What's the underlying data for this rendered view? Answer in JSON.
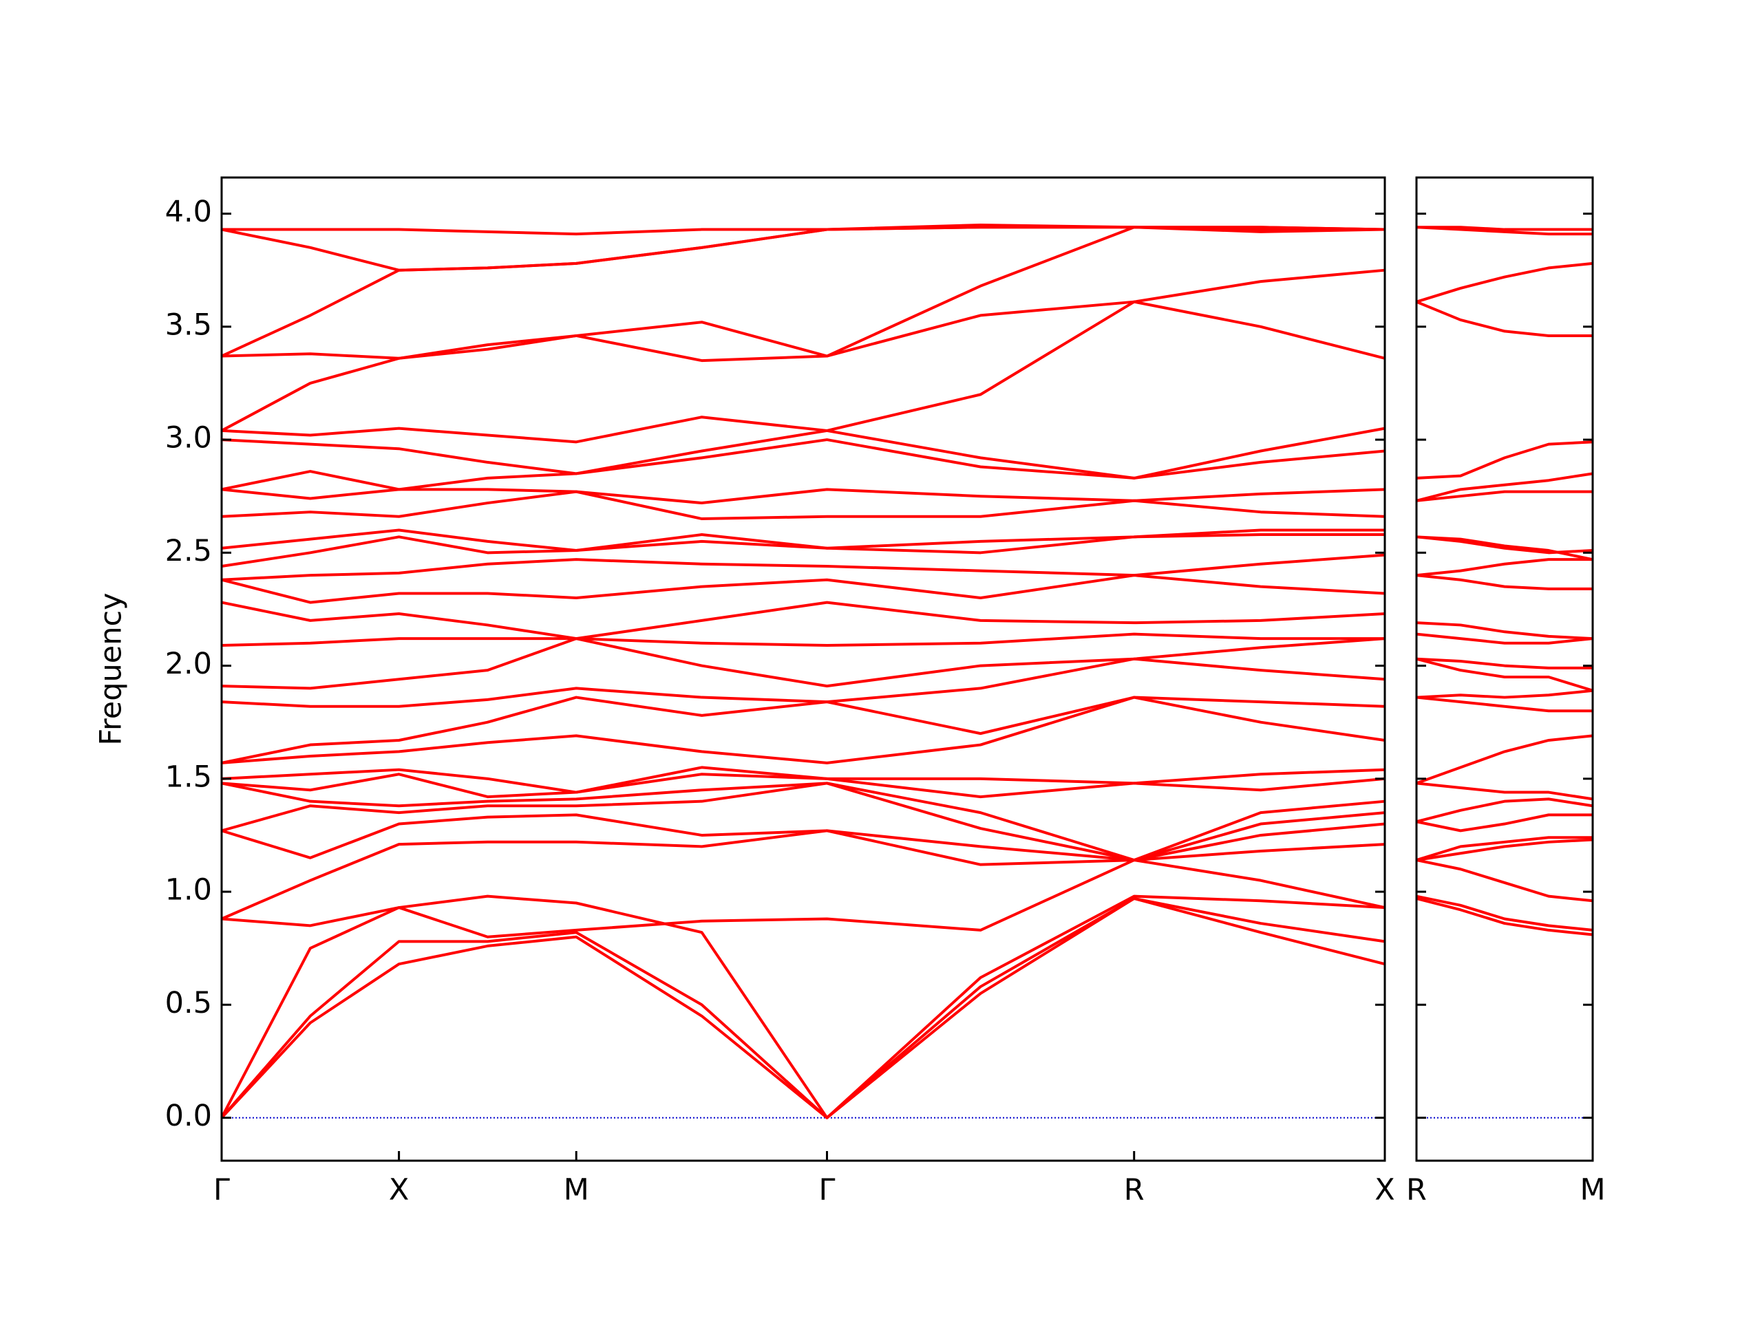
{
  "chart_data": [
    {
      "type": "line",
      "y_label": "Frequency",
      "color": "#ff0000",
      "zero_line_color": "#0000cc",
      "x": [
        0,
        0.25,
        0.5,
        0.75,
        1.0,
        1.354,
        1.707,
        2.14,
        2.573,
        2.93,
        3.28
      ],
      "xlim": [
        0,
        3.28
      ],
      "xticks": [
        {
          "value": 0,
          "label": "Γ"
        },
        {
          "value": 0.5,
          "label": "X"
        },
        {
          "value": 1.0,
          "label": "M"
        },
        {
          "value": 1.707,
          "label": "Γ"
        },
        {
          "value": 2.573,
          "label": "R"
        },
        {
          "value": 3.28,
          "label": "X"
        }
      ],
      "ylim": [
        -0.19,
        4.16
      ],
      "yticks": [
        {
          "value": 0,
          "label": "0.0"
        },
        {
          "value": 0.5,
          "label": "0.5"
        },
        {
          "value": 1,
          "label": "1.0"
        },
        {
          "value": 1.5,
          "label": "1.5"
        },
        {
          "value": 2,
          "label": "2.0"
        },
        {
          "value": 2.5,
          "label": "2.5"
        },
        {
          "value": 3,
          "label": "3.0"
        },
        {
          "value": 3.5,
          "label": "3.5"
        },
        {
          "value": 4,
          "label": "4.0"
        }
      ],
      "series": [
        {
          "values": [
            0,
            0.42,
            0.68,
            0.76,
            0.8,
            0.45,
            0,
            0.55,
            0.97,
            0.82,
            0.68
          ]
        },
        {
          "values": [
            0,
            0.45,
            0.78,
            0.78,
            0.82,
            0.5,
            0,
            0.58,
            0.97,
            0.86,
            0.78
          ]
        },
        {
          "values": [
            0,
            0.75,
            0.93,
            0.98,
            0.95,
            0.82,
            0,
            0.62,
            0.98,
            0.96,
            0.93
          ]
        },
        {
          "values": [
            0.88,
            0.85,
            0.93,
            0.8,
            0.83,
            0.87,
            0.88,
            0.83,
            1.14,
            1.05,
            0.93
          ]
        },
        {
          "values": [
            0.88,
            1.05,
            1.21,
            1.22,
            1.22,
            1.2,
            1.27,
            1.12,
            1.14,
            1.18,
            1.21
          ]
        },
        {
          "values": [
            1.27,
            1.15,
            1.3,
            1.33,
            1.34,
            1.25,
            1.27,
            1.2,
            1.14,
            1.25,
            1.3
          ]
        },
        {
          "values": [
            1.27,
            1.38,
            1.35,
            1.38,
            1.38,
            1.4,
            1.48,
            1.28,
            1.14,
            1.3,
            1.35
          ]
        },
        {
          "values": [
            1.48,
            1.4,
            1.38,
            1.4,
            1.41,
            1.45,
            1.48,
            1.35,
            1.14,
            1.35,
            1.4
          ]
        },
        {
          "values": [
            1.48,
            1.45,
            1.52,
            1.42,
            1.44,
            1.52,
            1.5,
            1.42,
            1.48,
            1.45,
            1.5
          ]
        },
        {
          "values": [
            1.5,
            1.52,
            1.54,
            1.5,
            1.44,
            1.55,
            1.5,
            1.5,
            1.48,
            1.52,
            1.54
          ]
        },
        {
          "values": [
            1.57,
            1.6,
            1.62,
            1.66,
            1.69,
            1.62,
            1.57,
            1.65,
            1.86,
            1.75,
            1.67
          ]
        },
        {
          "values": [
            1.57,
            1.65,
            1.67,
            1.75,
            1.86,
            1.78,
            1.84,
            1.7,
            1.86,
            1.84,
            1.82
          ]
        },
        {
          "values": [
            1.84,
            1.82,
            1.82,
            1.85,
            1.9,
            1.86,
            1.84,
            1.9,
            2.03,
            1.98,
            1.94
          ]
        },
        {
          "values": [
            1.91,
            1.9,
            1.94,
            1.98,
            2.12,
            2.0,
            1.91,
            2.0,
            2.03,
            2.08,
            2.12
          ]
        },
        {
          "values": [
            2.09,
            2.1,
            2.12,
            2.12,
            2.12,
            2.1,
            2.09,
            2.1,
            2.14,
            2.12,
            2.12
          ]
        },
        {
          "values": [
            2.28,
            2.2,
            2.23,
            2.18,
            2.12,
            2.2,
            2.28,
            2.2,
            2.19,
            2.2,
            2.23
          ]
        },
        {
          "values": [
            2.38,
            2.28,
            2.32,
            2.32,
            2.3,
            2.35,
            2.38,
            2.3,
            2.4,
            2.35,
            2.32
          ]
        },
        {
          "values": [
            2.38,
            2.4,
            2.41,
            2.45,
            2.47,
            2.45,
            2.44,
            2.42,
            2.4,
            2.45,
            2.49
          ]
        },
        {
          "values": [
            2.44,
            2.5,
            2.57,
            2.5,
            2.51,
            2.55,
            2.52,
            2.5,
            2.57,
            2.58,
            2.58
          ]
        },
        {
          "values": [
            2.52,
            2.56,
            2.6,
            2.55,
            2.51,
            2.58,
            2.52,
            2.55,
            2.57,
            2.6,
            2.6
          ]
        },
        {
          "values": [
            2.66,
            2.68,
            2.66,
            2.72,
            2.77,
            2.65,
            2.66,
            2.66,
            2.73,
            2.68,
            2.66
          ]
        },
        {
          "values": [
            2.78,
            2.74,
            2.78,
            2.78,
            2.77,
            2.72,
            2.78,
            2.75,
            2.73,
            2.76,
            2.78
          ]
        },
        {
          "values": [
            2.78,
            2.86,
            2.78,
            2.83,
            2.85,
            2.92,
            3.0,
            2.88,
            2.83,
            2.9,
            2.95
          ]
        },
        {
          "values": [
            3.0,
            2.98,
            2.96,
            2.9,
            2.85,
            2.95,
            3.04,
            2.92,
            2.83,
            2.95,
            3.05
          ]
        },
        {
          "values": [
            3.04,
            3.02,
            3.05,
            3.02,
            2.99,
            3.1,
            3.04,
            3.2,
            3.61,
            3.5,
            3.36
          ]
        },
        {
          "values": [
            3.04,
            3.25,
            3.36,
            3.4,
            3.46,
            3.35,
            3.37,
            3.55,
            3.61,
            3.7,
            3.75
          ]
        },
        {
          "values": [
            3.37,
            3.38,
            3.36,
            3.42,
            3.46,
            3.52,
            3.37,
            3.68,
            3.94,
            3.94,
            3.93
          ]
        },
        {
          "values": [
            3.37,
            3.55,
            3.75,
            3.76,
            3.78,
            3.85,
            3.93,
            3.94,
            3.94,
            3.93,
            3.93
          ]
        },
        {
          "values": [
            3.93,
            3.85,
            3.75,
            3.76,
            3.78,
            3.85,
            3.93,
            3.94,
            3.94,
            3.92,
            3.93
          ]
        },
        {
          "values": [
            3.93,
            3.93,
            3.93,
            3.92,
            3.91,
            3.93,
            3.93,
            3.95,
            3.94,
            3.94,
            3.93
          ]
        }
      ]
    },
    {
      "type": "line",
      "color": "#ff0000",
      "zero_line_color": "#0000cc",
      "x": [
        0,
        0.125,
        0.25,
        0.375,
        0.5
      ],
      "xlim": [
        0,
        0.5
      ],
      "xticks": [
        {
          "value": 0,
          "label": "R"
        },
        {
          "value": 0.5,
          "label": "M"
        }
      ],
      "ylim": [
        -0.19,
        4.16
      ],
      "yticks": [
        0,
        0.5,
        1,
        1.5,
        2,
        2.5,
        3,
        3.5,
        4
      ],
      "series": [
        {
          "values": [
            0.97,
            0.92,
            0.86,
            0.83,
            0.81
          ]
        },
        {
          "values": [
            0.98,
            0.94,
            0.88,
            0.85,
            0.83
          ]
        },
        {
          "values": [
            1.14,
            1.17,
            1.2,
            1.22,
            1.23
          ]
        },
        {
          "values": [
            1.14,
            1.2,
            1.22,
            1.24,
            1.24
          ]
        },
        {
          "values": [
            1.14,
            1.1,
            1.04,
            0.98,
            0.96
          ]
        },
        {
          "values": [
            1.31,
            1.27,
            1.3,
            1.34,
            1.34
          ]
        },
        {
          "values": [
            1.31,
            1.36,
            1.4,
            1.41,
            1.38
          ]
        },
        {
          "values": [
            1.48,
            1.46,
            1.44,
            1.44,
            1.41
          ]
        },
        {
          "values": [
            1.48,
            1.55,
            1.62,
            1.67,
            1.69
          ]
        },
        {
          "values": [
            1.86,
            1.84,
            1.82,
            1.8,
            1.8
          ]
        },
        {
          "values": [
            1.86,
            1.87,
            1.86,
            1.87,
            1.89
          ]
        },
        {
          "values": [
            2.03,
            2.02,
            2.0,
            1.99,
            1.99
          ]
        },
        {
          "values": [
            2.03,
            1.98,
            1.95,
            1.95,
            1.89
          ]
        },
        {
          "values": [
            2.14,
            2.12,
            2.1,
            2.1,
            2.12
          ]
        },
        {
          "values": [
            2.19,
            2.18,
            2.15,
            2.13,
            2.12
          ]
        },
        {
          "values": [
            2.4,
            2.38,
            2.35,
            2.34,
            2.34
          ]
        },
        {
          "values": [
            2.4,
            2.42,
            2.45,
            2.47,
            2.47
          ]
        },
        {
          "values": [
            2.57,
            2.55,
            2.52,
            2.5,
            2.51
          ]
        },
        {
          "values": [
            2.57,
            2.56,
            2.53,
            2.51,
            2.47
          ]
        },
        {
          "values": [
            2.73,
            2.75,
            2.77,
            2.77,
            2.77
          ]
        },
        {
          "values": [
            2.73,
            2.78,
            2.8,
            2.82,
            2.85
          ]
        },
        {
          "values": [
            2.83,
            2.84,
            2.92,
            2.98,
            2.99
          ]
        },
        {
          "values": [
            3.61,
            3.67,
            3.72,
            3.76,
            3.78
          ]
        },
        {
          "values": [
            3.61,
            3.53,
            3.48,
            3.46,
            3.46
          ]
        },
        {
          "values": [
            3.94,
            3.93,
            3.92,
            3.91,
            3.91
          ]
        },
        {
          "values": [
            3.94,
            3.94,
            3.93,
            3.93,
            3.93
          ]
        }
      ]
    }
  ]
}
